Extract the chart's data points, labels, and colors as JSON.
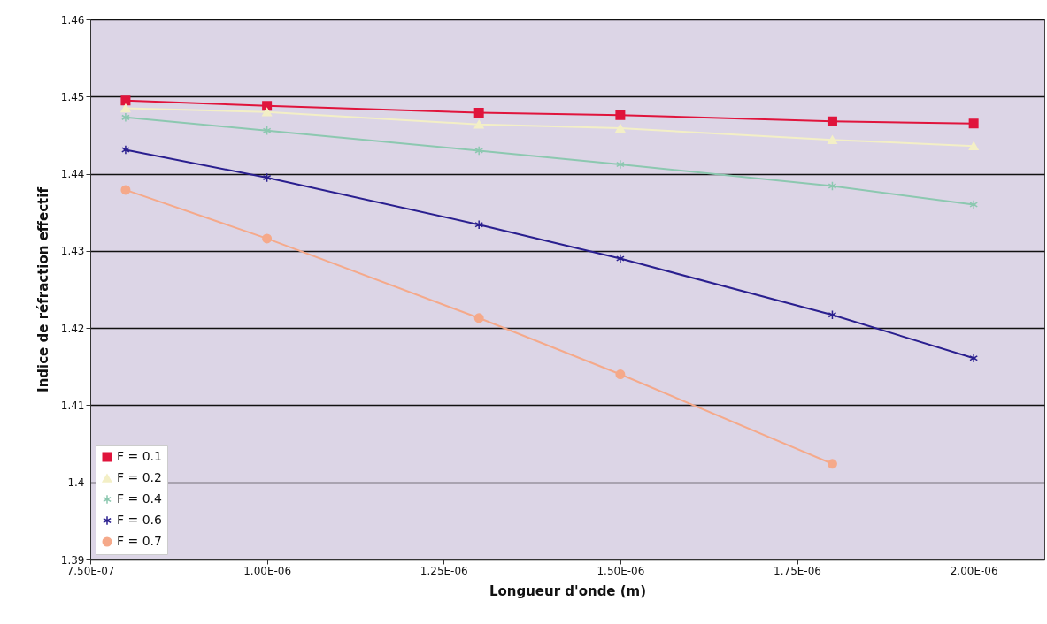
{
  "chart_data": {
    "type": "line",
    "xlabel": "Longueur d'onde (m)",
    "ylabel": "Indice de réfraction effectif",
    "x": [
      8e-07,
      1e-06,
      1.3e-06,
      1.5e-06,
      1.8e-06,
      2e-06
    ],
    "series": [
      {
        "name": "F = 0.1",
        "color": "#e0143c",
        "marker": "square",
        "values": [
          1.4495,
          1.4488,
          1.4479,
          1.4476,
          1.4468,
          1.4465
        ]
      },
      {
        "name": "F = 0.2",
        "color": "#f3efc6",
        "marker": "triangle",
        "values": [
          1.4485,
          1.448,
          1.4464,
          1.4459,
          1.4444,
          1.4436
        ]
      },
      {
        "name": "F = 0.4",
        "color": "#8cc8b0",
        "marker": "cross",
        "values": [
          1.4473,
          1.4456,
          1.443,
          1.4412,
          1.4384,
          1.436
        ]
      },
      {
        "name": "F = 0.6",
        "color": "#2a1f8f",
        "marker": "cross",
        "values": [
          1.4431,
          1.4395,
          1.4334,
          1.429,
          1.4217,
          1.4161
        ]
      },
      {
        "name": "F = 0.7",
        "color": "#f5a98a",
        "marker": "circle",
        "values": [
          1.4379,
          1.4316,
          1.4213,
          1.414,
          1.4024,
          null
        ]
      }
    ],
    "xlim": [
      7.5e-07,
      2.1e-06
    ],
    "xticks": [
      {
        "value": 7.5e-07,
        "label": "7.50E-07"
      },
      {
        "value": 1e-06,
        "label": "1.00E-06"
      },
      {
        "value": 1.25e-06,
        "label": "1.25E-06"
      },
      {
        "value": 1.5e-06,
        "label": "1.50E-06"
      },
      {
        "value": 1.75e-06,
        "label": "1.75E-06"
      },
      {
        "value": 2e-06,
        "label": "2.00E-06"
      }
    ],
    "ylim": [
      1.39,
      1.46
    ],
    "yticks": [
      1.39,
      {
        "value": 1.4,
        "label": "1.4"
      },
      1.41,
      1.42,
      1.43,
      1.44,
      1.45,
      1.46
    ],
    "grid": "y",
    "legend": "bottom left",
    "line_style": "solid"
  }
}
